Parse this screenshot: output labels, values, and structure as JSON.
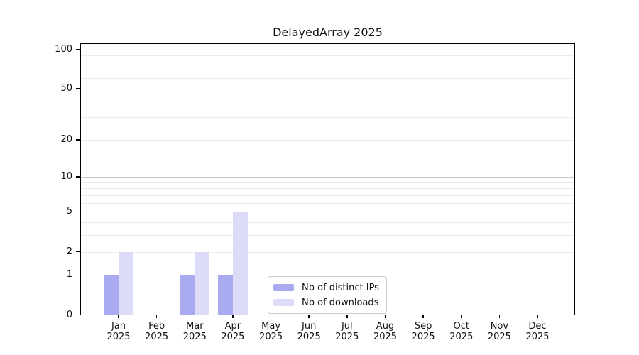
{
  "title": "DelayedArray 2025",
  "chart_data": {
    "type": "bar",
    "title": "DelayedArray 2025",
    "categories": [
      "Jan",
      "Feb",
      "Mar",
      "Apr",
      "May",
      "Jun",
      "Jul",
      "Aug",
      "Sep",
      "Oct",
      "Nov",
      "Dec"
    ],
    "category_year": "2025",
    "series": [
      {
        "name": "Nb of distinct IPs",
        "color": "#aaaaf0",
        "values": [
          1,
          0,
          1,
          1,
          0,
          0,
          0,
          0,
          0,
          0,
          0,
          0
        ]
      },
      {
        "name": "Nb of downloads",
        "color": "#dcdcf8",
        "values": [
          2,
          0,
          2,
          5,
          0,
          0,
          0,
          0,
          0,
          0,
          0,
          0
        ]
      }
    ],
    "yscale": "log10(1+x)",
    "ylim": [
      0,
      110
    ],
    "ytick_values": [
      0,
      1,
      2,
      5,
      10,
      20,
      50,
      100
    ],
    "ytick_labels": [
      "0",
      "1",
      "2",
      "5",
      "10",
      "20",
      "50",
      "100"
    ],
    "major_grid_values": [
      1,
      10,
      100
    ],
    "minor_grid_values": [
      2,
      3,
      4,
      5,
      6,
      7,
      8,
      9,
      20,
      30,
      40,
      50,
      60,
      70,
      80,
      90
    ],
    "grid": true,
    "legend_position": "bottom-center",
    "xlabel": "",
    "ylabel": ""
  },
  "colors": {
    "background": "#ffffff",
    "spine": "#000000",
    "grid_major": "#c8c8c8",
    "grid_minor": "#ececec",
    "text": "#111111",
    "legend_border": "#cccccc"
  }
}
